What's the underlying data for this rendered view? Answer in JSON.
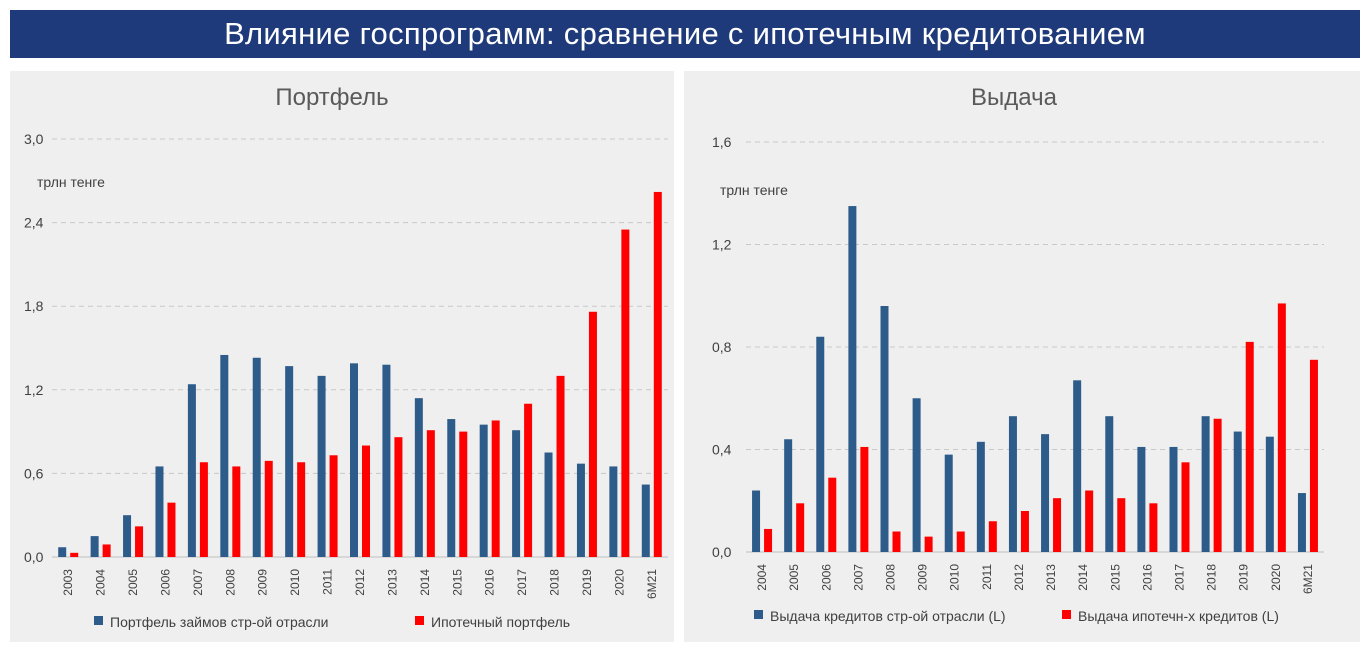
{
  "header": {
    "title": "Влияние госпрограмм: сравнение с ипотечным кредитованием"
  },
  "colors": {
    "banner": "#1f3a7a",
    "series_blue": "#2e5c8a",
    "series_red": "#ff0000"
  },
  "chart_data": [
    {
      "type": "bar",
      "title": "Портфель",
      "unit_label": "трлн тенге",
      "categories": [
        "2003",
        "2004",
        "2005",
        "2006",
        "2007",
        "2008",
        "2009",
        "2010",
        "2011",
        "2012",
        "2013",
        "2014",
        "2015",
        "2016",
        "2017",
        "2018",
        "2019",
        "2020",
        "6М21"
      ],
      "y_ticks": [
        "0,0",
        "0,6",
        "1,2",
        "1,8",
        "2,4",
        "3,0"
      ],
      "ylim": [
        0,
        3.0
      ],
      "grid": true,
      "legend_position": "bottom",
      "series": [
        {
          "name": "Портфель займов стр-ой отрасли",
          "color": "#2e5c8a",
          "values": [
            0.07,
            0.15,
            0.3,
            0.65,
            1.24,
            1.45,
            1.43,
            1.37,
            1.3,
            1.39,
            1.38,
            1.14,
            0.99,
            0.95,
            0.91,
            0.75,
            0.67,
            0.65,
            0.52
          ]
        },
        {
          "name": "Ипотечный портфель",
          "color": "#ff0000",
          "values": [
            0.03,
            0.09,
            0.22,
            0.39,
            0.68,
            0.65,
            0.69,
            0.68,
            0.73,
            0.8,
            0.86,
            0.91,
            0.9,
            0.98,
            1.1,
            1.3,
            1.76,
            2.35,
            2.62
          ]
        }
      ]
    },
    {
      "type": "bar",
      "title": "Выдача",
      "unit_label": "трлн тенге",
      "categories": [
        "2004",
        "2005",
        "2006",
        "2007",
        "2008",
        "2009",
        "2010",
        "2011",
        "2012",
        "2013",
        "2014",
        "2015",
        "2016",
        "2017",
        "2018",
        "2019",
        "2020",
        "6М21"
      ],
      "y_ticks": [
        "0,0",
        "0,4",
        "0,8",
        "1,2",
        "1,6"
      ],
      "ylim": [
        0,
        1.6
      ],
      "grid": true,
      "legend_position": "bottom",
      "series": [
        {
          "name": "Выдача кредитов стр-ой отрасли (L)",
          "color": "#2e5c8a",
          "values": [
            0.24,
            0.44,
            0.84,
            1.35,
            0.96,
            0.6,
            0.38,
            0.43,
            0.53,
            0.46,
            0.67,
            0.53,
            0.41,
            0.41,
            0.53,
            0.47,
            0.45,
            0.23
          ]
        },
        {
          "name": "Выдача ипотечн-х кредитов (L)",
          "color": "#ff0000",
          "values": [
            0.09,
            0.19,
            0.29,
            0.41,
            0.08,
            0.06,
            0.08,
            0.12,
            0.16,
            0.21,
            0.24,
            0.21,
            0.19,
            0.35,
            0.52,
            0.82,
            0.97,
            0.75
          ]
        }
      ]
    }
  ]
}
